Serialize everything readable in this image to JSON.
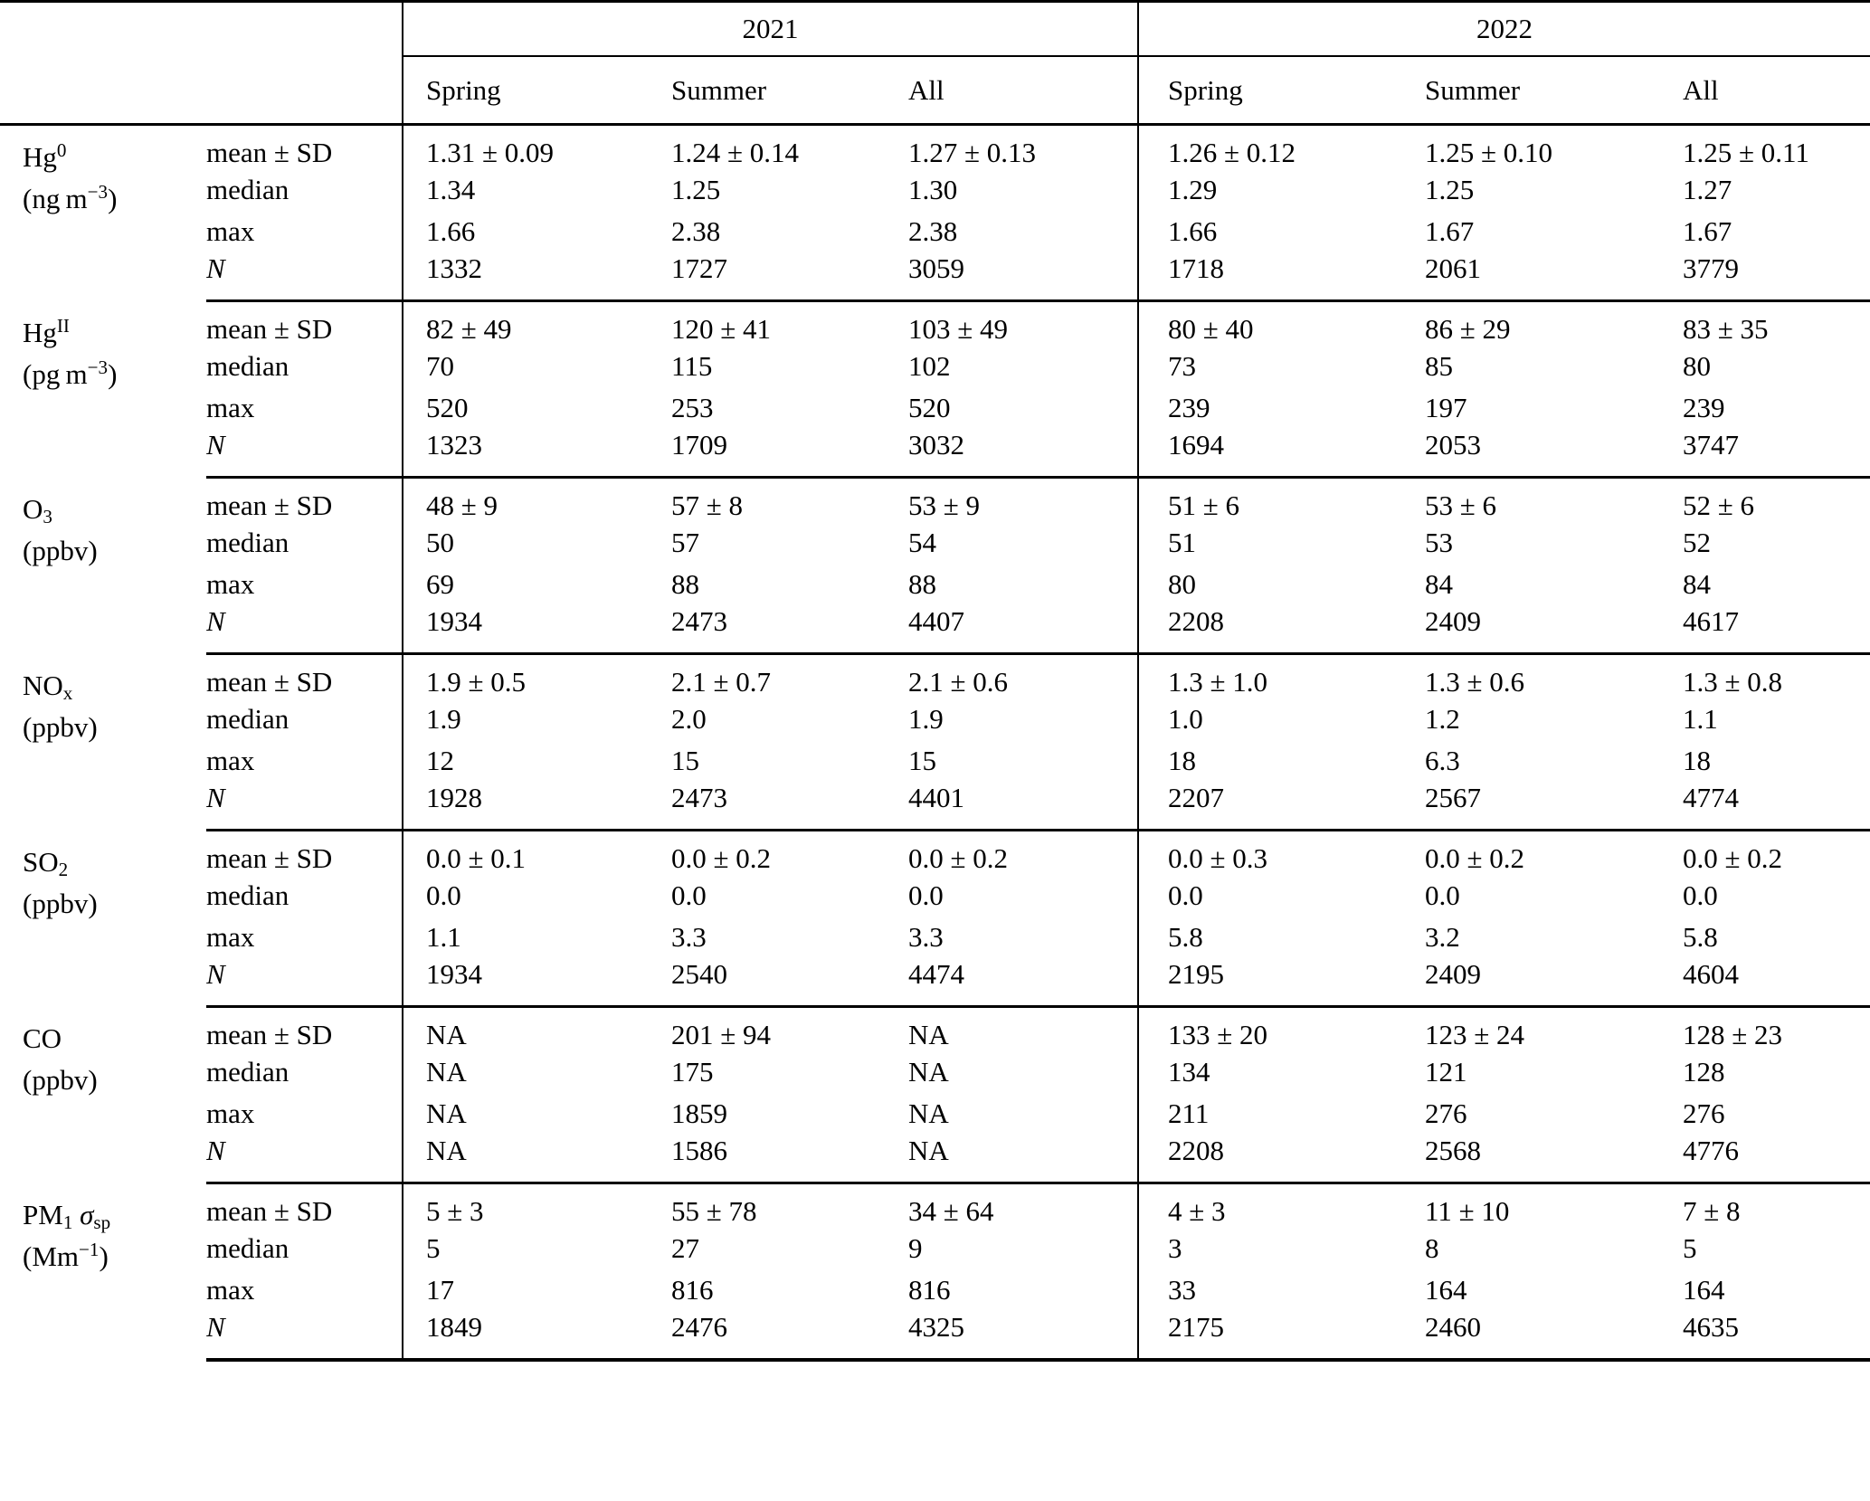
{
  "table": {
    "years": [
      "2021",
      "2022"
    ],
    "seasons": [
      "Spring",
      "Summer",
      "All"
    ],
    "stats": [
      {
        "key": "mean",
        "parts": [
          [
            "t",
            "mean ± SD"
          ]
        ]
      },
      {
        "key": "median",
        "parts": [
          [
            "t",
            "median"
          ]
        ]
      },
      {
        "key": "max",
        "parts": [
          [
            "t",
            "max"
          ]
        ]
      },
      {
        "key": "n",
        "parts": [
          [
            "i",
            "N"
          ]
        ]
      }
    ],
    "blocks": [
      {
        "species_parts": [
          [
            "t",
            "Hg"
          ],
          [
            "sup",
            "0"
          ]
        ],
        "unit_parts": [
          [
            "t",
            "(ng m"
          ],
          [
            "sup",
            "−3"
          ],
          [
            "t",
            ")"
          ]
        ],
        "rows": {
          "mean": [
            "1.31 ± 0.09",
            "1.24 ± 0.14",
            "1.27 ± 0.13",
            "1.26 ± 0.12",
            "1.25 ± 0.10",
            "1.25 ± 0.11"
          ],
          "median": [
            "1.34",
            "1.25",
            "1.30",
            "1.29",
            "1.25",
            "1.27"
          ],
          "max": [
            "1.66",
            "2.38",
            "2.38",
            "1.66",
            "1.67",
            "1.67"
          ],
          "n": [
            "1332",
            "1727",
            "3059",
            "1718",
            "2061",
            "3779"
          ]
        }
      },
      {
        "species_parts": [
          [
            "t",
            "Hg"
          ],
          [
            "sup",
            "II"
          ]
        ],
        "unit_parts": [
          [
            "t",
            "(pg m"
          ],
          [
            "sup",
            "−3"
          ],
          [
            "t",
            ")"
          ]
        ],
        "rows": {
          "mean": [
            "82 ± 49",
            "120 ± 41",
            "103 ± 49",
            "80 ± 40",
            "86 ± 29",
            "83 ± 35"
          ],
          "median": [
            "70",
            "115",
            "102",
            "73",
            "85",
            "80"
          ],
          "max": [
            "520",
            "253",
            "520",
            "239",
            "197",
            "239"
          ],
          "n": [
            "1323",
            "1709",
            "3032",
            "1694",
            "2053",
            "3747"
          ]
        }
      },
      {
        "species_parts": [
          [
            "t",
            "O"
          ],
          [
            "sub",
            "3"
          ]
        ],
        "unit_parts": [
          [
            "t",
            "(ppbv)"
          ]
        ],
        "rows": {
          "mean": [
            "48 ± 9",
            "57 ± 8",
            "53 ± 9",
            "51 ± 6",
            "53 ± 6",
            "52 ± 6"
          ],
          "median": [
            "50",
            "57",
            "54",
            "51",
            "53",
            "52"
          ],
          "max": [
            "69",
            "88",
            "88",
            "80",
            "84",
            "84"
          ],
          "n": [
            "1934",
            "2473",
            "4407",
            "2208",
            "2409",
            "4617"
          ]
        }
      },
      {
        "species_parts": [
          [
            "t",
            "NO"
          ],
          [
            "sub",
            "x"
          ]
        ],
        "unit_parts": [
          [
            "t",
            "(ppbv)"
          ]
        ],
        "rows": {
          "mean": [
            "1.9 ± 0.5",
            "2.1 ± 0.7",
            "2.1 ± 0.6",
            "1.3 ± 1.0",
            "1.3 ± 0.6",
            "1.3 ± 0.8"
          ],
          "median": [
            "1.9",
            "2.0",
            "1.9",
            "1.0",
            "1.2",
            "1.1"
          ],
          "max": [
            "12",
            "15",
            "15",
            "18",
            "6.3",
            "18"
          ],
          "n": [
            "1928",
            "2473",
            "4401",
            "2207",
            "2567",
            "4774"
          ]
        }
      },
      {
        "species_parts": [
          [
            "t",
            "SO"
          ],
          [
            "sub",
            "2"
          ]
        ],
        "unit_parts": [
          [
            "t",
            "(ppbv)"
          ]
        ],
        "rows": {
          "mean": [
            "0.0 ± 0.1",
            "0.0 ± 0.2",
            "0.0 ± 0.2",
            "0.0 ± 0.3",
            "0.0 ± 0.2",
            "0.0 ± 0.2"
          ],
          "median": [
            "0.0",
            "0.0",
            "0.0",
            "0.0",
            "0.0",
            "0.0"
          ],
          "max": [
            "1.1",
            "3.3",
            "3.3",
            "5.8",
            "3.2",
            "5.8"
          ],
          "n": [
            "1934",
            "2540",
            "4474",
            "2195",
            "2409",
            "4604"
          ]
        }
      },
      {
        "species_parts": [
          [
            "t",
            "CO"
          ]
        ],
        "unit_parts": [
          [
            "t",
            "(ppbv)"
          ]
        ],
        "rows": {
          "mean": [
            "NA",
            "201 ± 94",
            "NA",
            "133 ± 20",
            "123 ± 24",
            "128 ± 23"
          ],
          "median": [
            "NA",
            "175",
            "NA",
            "134",
            "121",
            "128"
          ],
          "max": [
            "NA",
            "1859",
            "NA",
            "211",
            "276",
            "276"
          ],
          "n": [
            "NA",
            "1586",
            "NA",
            "2208",
            "2568",
            "4776"
          ]
        }
      },
      {
        "species_parts": [
          [
            "t",
            "PM"
          ],
          [
            "sub",
            "1"
          ],
          [
            "t",
            " "
          ],
          [
            "i",
            "σ"
          ],
          [
            "sub",
            "sp"
          ]
        ],
        "unit_parts": [
          [
            "t",
            "(Mm"
          ],
          [
            "sup",
            "−1"
          ],
          [
            "t",
            ")"
          ]
        ],
        "rows": {
          "mean": [
            "5 ± 3",
            "55 ± 78",
            "34 ± 64",
            "4 ± 3",
            "11 ± 10",
            "7 ± 8"
          ],
          "median": [
            "5",
            "27",
            "9",
            "3",
            "8",
            "5"
          ],
          "max": [
            "17",
            "816",
            "816",
            "33",
            "164",
            "164"
          ],
          "n": [
            "1849",
            "2476",
            "4325",
            "2175",
            "2460",
            "4635"
          ]
        }
      }
    ]
  }
}
